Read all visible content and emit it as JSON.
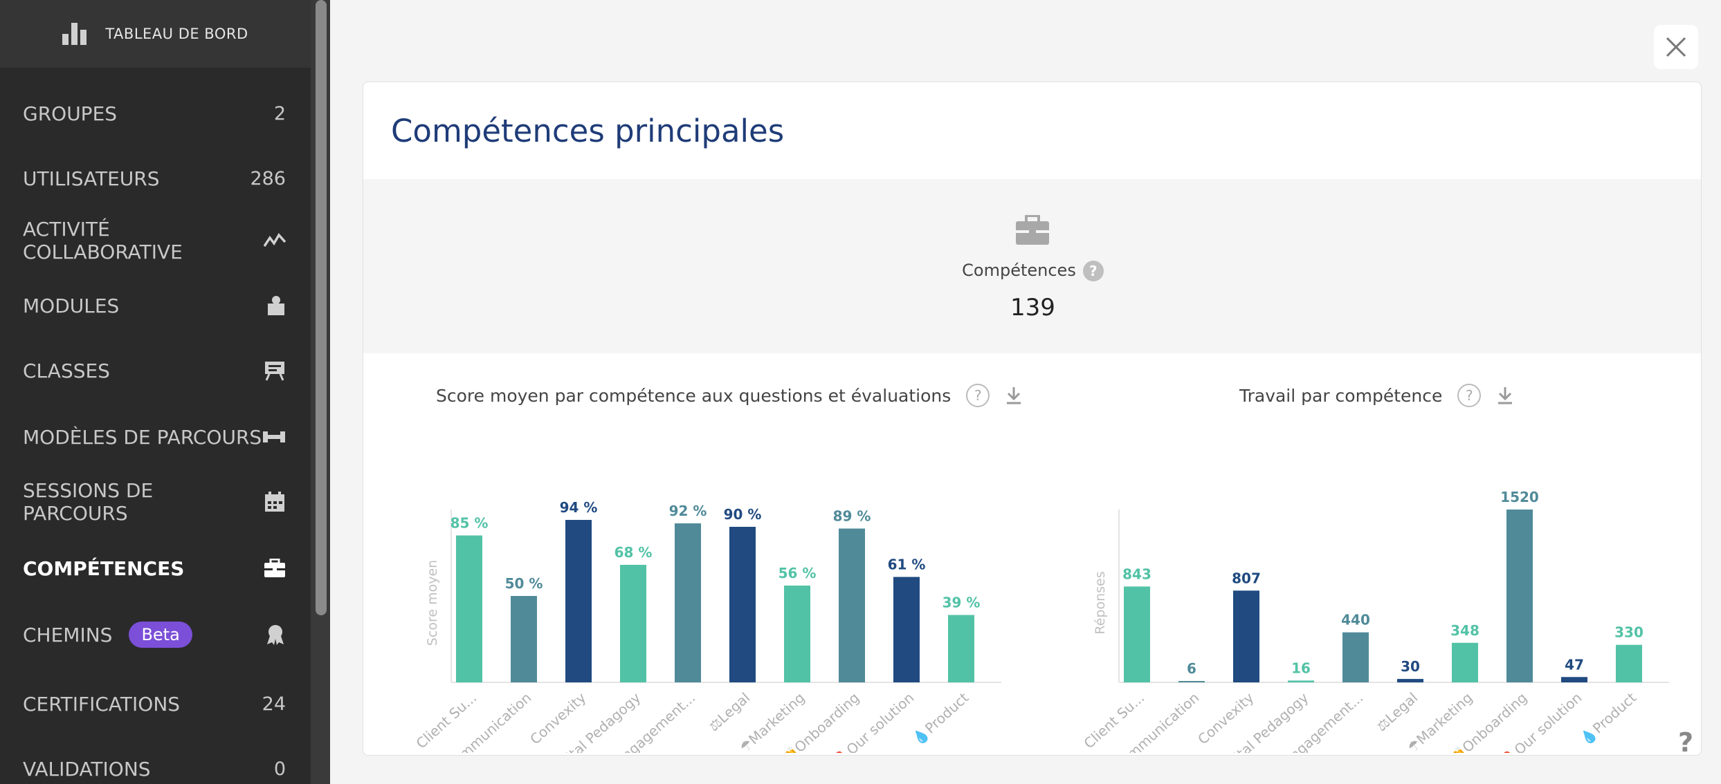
{
  "sidebar": {
    "header_title": "TABLEAU DE BORD",
    "items": [
      {
        "label": "GROUPES",
        "count": "2"
      },
      {
        "label": "UTILISATEURS",
        "count": "286"
      },
      {
        "label": "ACTIVITÉ COLLABORATIVE",
        "icon": "activity-icon"
      },
      {
        "label": "MODULES",
        "icon": "puzzle-icon"
      },
      {
        "label": "CLASSES",
        "icon": "presentation-icon"
      },
      {
        "label": "MODÈLES DE PARCOURS",
        "icon": "path-template-icon"
      },
      {
        "label": "SESSIONS DE PARCOURS",
        "icon": "calendar-icon"
      },
      {
        "label": "COMPÉTENCES",
        "icon": "briefcase-icon",
        "active": true
      },
      {
        "label": "CHEMINS",
        "badge": "Beta",
        "icon": "badge-icon"
      },
      {
        "label": "CERTIFICATIONS",
        "count": "24"
      },
      {
        "label": "VALIDATIONS",
        "count": "0"
      }
    ]
  },
  "card": {
    "title": "Compétences principales",
    "kpi_label": "Compétences",
    "kpi_value": "139"
  },
  "charts": {
    "left_title": "Score moyen par compétence aux questions et évaluations",
    "right_title": "Travail par compétence",
    "help_glyph": "?",
    "page_help_glyph": "?"
  },
  "colors": {
    "teal": "#52c2a6",
    "steel": "#508a99",
    "navy": "#204a80"
  },
  "chart_data": [
    {
      "type": "bar",
      "title": "Score moyen par compétence aux questions et évaluations",
      "ylabel": "Score moyen",
      "ylim": [
        0,
        100
      ],
      "categories": [
        "Client Su...",
        "communication",
        "Convexity",
        "Digital Pedagogy",
        "Learning Engagement...",
        "⚖Legal",
        "☂Marketing",
        "👏Onboarding",
        "🔥Our solution",
        "💧Product"
      ],
      "values": [
        85,
        50,
        94,
        68,
        92,
        90,
        56,
        89,
        61,
        39
      ],
      "labels": [
        "85 %",
        "50 %",
        "94 %",
        "68 %",
        "92 %",
        "90 %",
        "56 %",
        "89 %",
        "61 %",
        "39 %"
      ],
      "colors": [
        "teal",
        "steel",
        "navy",
        "teal",
        "steel",
        "navy",
        "teal",
        "steel",
        "navy",
        "teal"
      ]
    },
    {
      "type": "bar",
      "title": "Travail par compétence",
      "ylabel": "Réponses",
      "ylim": [
        0,
        1520
      ],
      "categories": [
        "Client Su...",
        "communication",
        "Convexity",
        "Digital Pedagogy",
        "Learning Engagement...",
        "⚖Legal",
        "☂Marketing",
        "👏Onboarding",
        "🔥Our solution",
        "💧Product"
      ],
      "values": [
        843,
        6,
        807,
        16,
        440,
        30,
        348,
        1520,
        47,
        330
      ],
      "labels": [
        "843",
        "6",
        "807",
        "16",
        "440",
        "30",
        "348",
        "1520",
        "47",
        "330"
      ],
      "colors": [
        "teal",
        "steel",
        "navy",
        "teal",
        "steel",
        "navy",
        "teal",
        "steel",
        "navy",
        "teal"
      ]
    }
  ]
}
